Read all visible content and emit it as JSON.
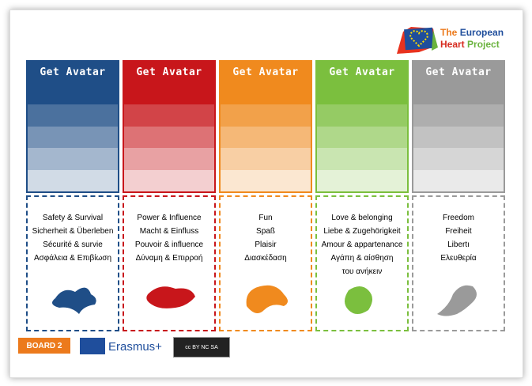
{
  "logo": {
    "line1a": "The",
    "line1b": "European",
    "line2a": "Heart",
    "line2b": "Project"
  },
  "columns": [
    {
      "button": "Get Avatar",
      "color": "#1f4e87",
      "lines": [
        "Safety & Survival",
        "Sicherheit & Überleben",
        "Sécurité & survie",
        "Ασφάλεια & Επιβίωση"
      ]
    },
    {
      "button": "Get Avatar",
      "color": "#c8161b",
      "lines": [
        "Power & Influence",
        "Macht & Einfluss",
        "Pouvoir & influence",
        "Δύναμη & Επιρροή"
      ]
    },
    {
      "button": "Get Avatar",
      "color": "#f08a1e",
      "lines": [
        "Fun",
        "Spaß",
        "Plaisir",
        "Διασκέδαση"
      ]
    },
    {
      "button": "Get Avatar",
      "color": "#7bbf3e",
      "lines": [
        "Love & belonging",
        "Liebe & Zugehörigkeit",
        "Amour & appartenance",
        "Αγάπη & αίσθηση",
        "του ανήκειν"
      ]
    },
    {
      "button": "Get Avatar",
      "color": "#9a9a9a",
      "lines": [
        "Freedom",
        "Freiheit",
        "Libertı",
        "Ελευθερία"
      ]
    }
  ],
  "footer": {
    "board": "BOARD  2",
    "erasmus": "Erasmus+",
    "license": "cc BY NC SA"
  }
}
